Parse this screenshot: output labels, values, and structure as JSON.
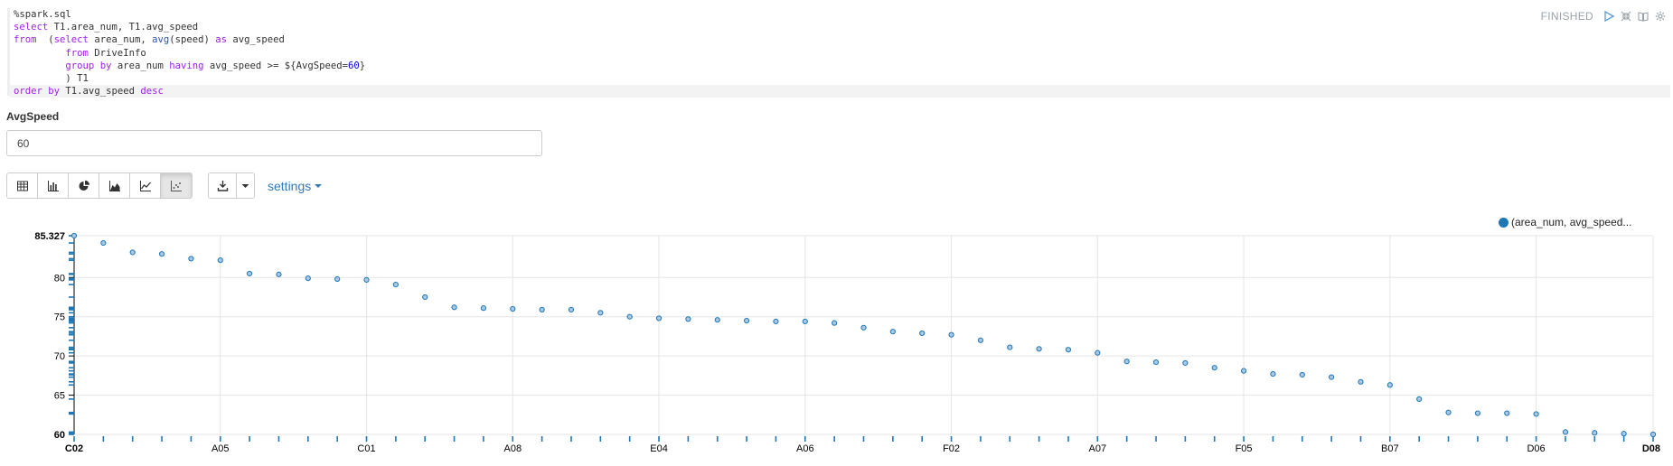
{
  "paragraph": {
    "status": "FINISHED",
    "code_lines": [
      [
        {
          "t": "%spark.sql",
          "c": "magic"
        }
      ],
      [
        {
          "t": "select",
          "c": "kw"
        },
        {
          "t": " T1.area_num, T1.avg_speed",
          "c": "plain"
        }
      ],
      [
        {
          "t": "from",
          "c": "kw"
        },
        {
          "t": "  (",
          "c": "plain"
        },
        {
          "t": "select",
          "c": "kw"
        },
        {
          "t": " area_num, ",
          "c": "plain"
        },
        {
          "t": "avg",
          "c": "kw2"
        },
        {
          "t": "(speed) ",
          "c": "plain"
        },
        {
          "t": "as",
          "c": "kw"
        },
        {
          "t": " avg_speed",
          "c": "plain"
        }
      ],
      [
        {
          "t": "         ",
          "c": "plain"
        },
        {
          "t": "from",
          "c": "kw"
        },
        {
          "t": " DriveInfo",
          "c": "plain"
        }
      ],
      [
        {
          "t": "         ",
          "c": "plain"
        },
        {
          "t": "group",
          "c": "kw"
        },
        {
          "t": " ",
          "c": "plain"
        },
        {
          "t": "by",
          "c": "kw"
        },
        {
          "t": " area_num ",
          "c": "plain"
        },
        {
          "t": "having",
          "c": "kw"
        },
        {
          "t": " avg_speed >= ${AvgSpeed=",
          "c": "plain"
        },
        {
          "t": "60",
          "c": "num"
        },
        {
          "t": "}",
          "c": "plain"
        }
      ],
      [
        {
          "t": "         ) T1",
          "c": "plain"
        }
      ],
      [
        {
          "t": "order",
          "c": "kw"
        },
        {
          "t": " ",
          "c": "plain"
        },
        {
          "t": "by",
          "c": "kw"
        },
        {
          "t": " T1.avg_speed ",
          "c": "plain"
        },
        {
          "t": "desc",
          "c": "kw"
        }
      ]
    ]
  },
  "form": {
    "label": "AvgSpeed",
    "value": "60"
  },
  "toolbar": {
    "viz_buttons": [
      "table-icon",
      "bar-chart-icon",
      "pie-chart-icon",
      "area-chart-icon",
      "line-chart-icon",
      "scatter-chart-icon"
    ],
    "active_viz": 5,
    "settings_label": "settings"
  },
  "legend": {
    "label": "(area_num, avg_speed..."
  },
  "colors": {
    "series": "#1f77b4",
    "link": "#337ab7"
  },
  "chart_data": {
    "type": "scatter",
    "ylim": [
      60,
      85.327
    ],
    "y_ticks": [
      "60",
      "65",
      "70",
      "75",
      "80",
      "85.327"
    ],
    "x_tick_labels": [
      "C02",
      "A05",
      "C01",
      "A08",
      "E04",
      "A06",
      "F02",
      "A07",
      "F05",
      "B07",
      "D06",
      "D08"
    ],
    "grid": true,
    "legend_position": "top-right",
    "series": [
      {
        "name": "(area_num, avg_speed...",
        "values": [
          85.33,
          84.4,
          83.2,
          83.0,
          82.4,
          82.2,
          80.5,
          80.4,
          79.9,
          79.8,
          79.7,
          79.1,
          77.5,
          76.2,
          76.1,
          76.0,
          75.9,
          75.9,
          75.5,
          75.0,
          74.8,
          74.7,
          74.6,
          74.5,
          74.4,
          74.4,
          74.2,
          73.6,
          73.1,
          72.9,
          72.7,
          72.0,
          71.1,
          70.9,
          70.8,
          70.4,
          69.3,
          69.2,
          69.1,
          68.5,
          68.1,
          67.7,
          67.6,
          67.3,
          66.7,
          66.3,
          64.5,
          62.8,
          62.7,
          62.7,
          62.6,
          60.3,
          60.2,
          60.1,
          60.0
        ]
      }
    ]
  }
}
